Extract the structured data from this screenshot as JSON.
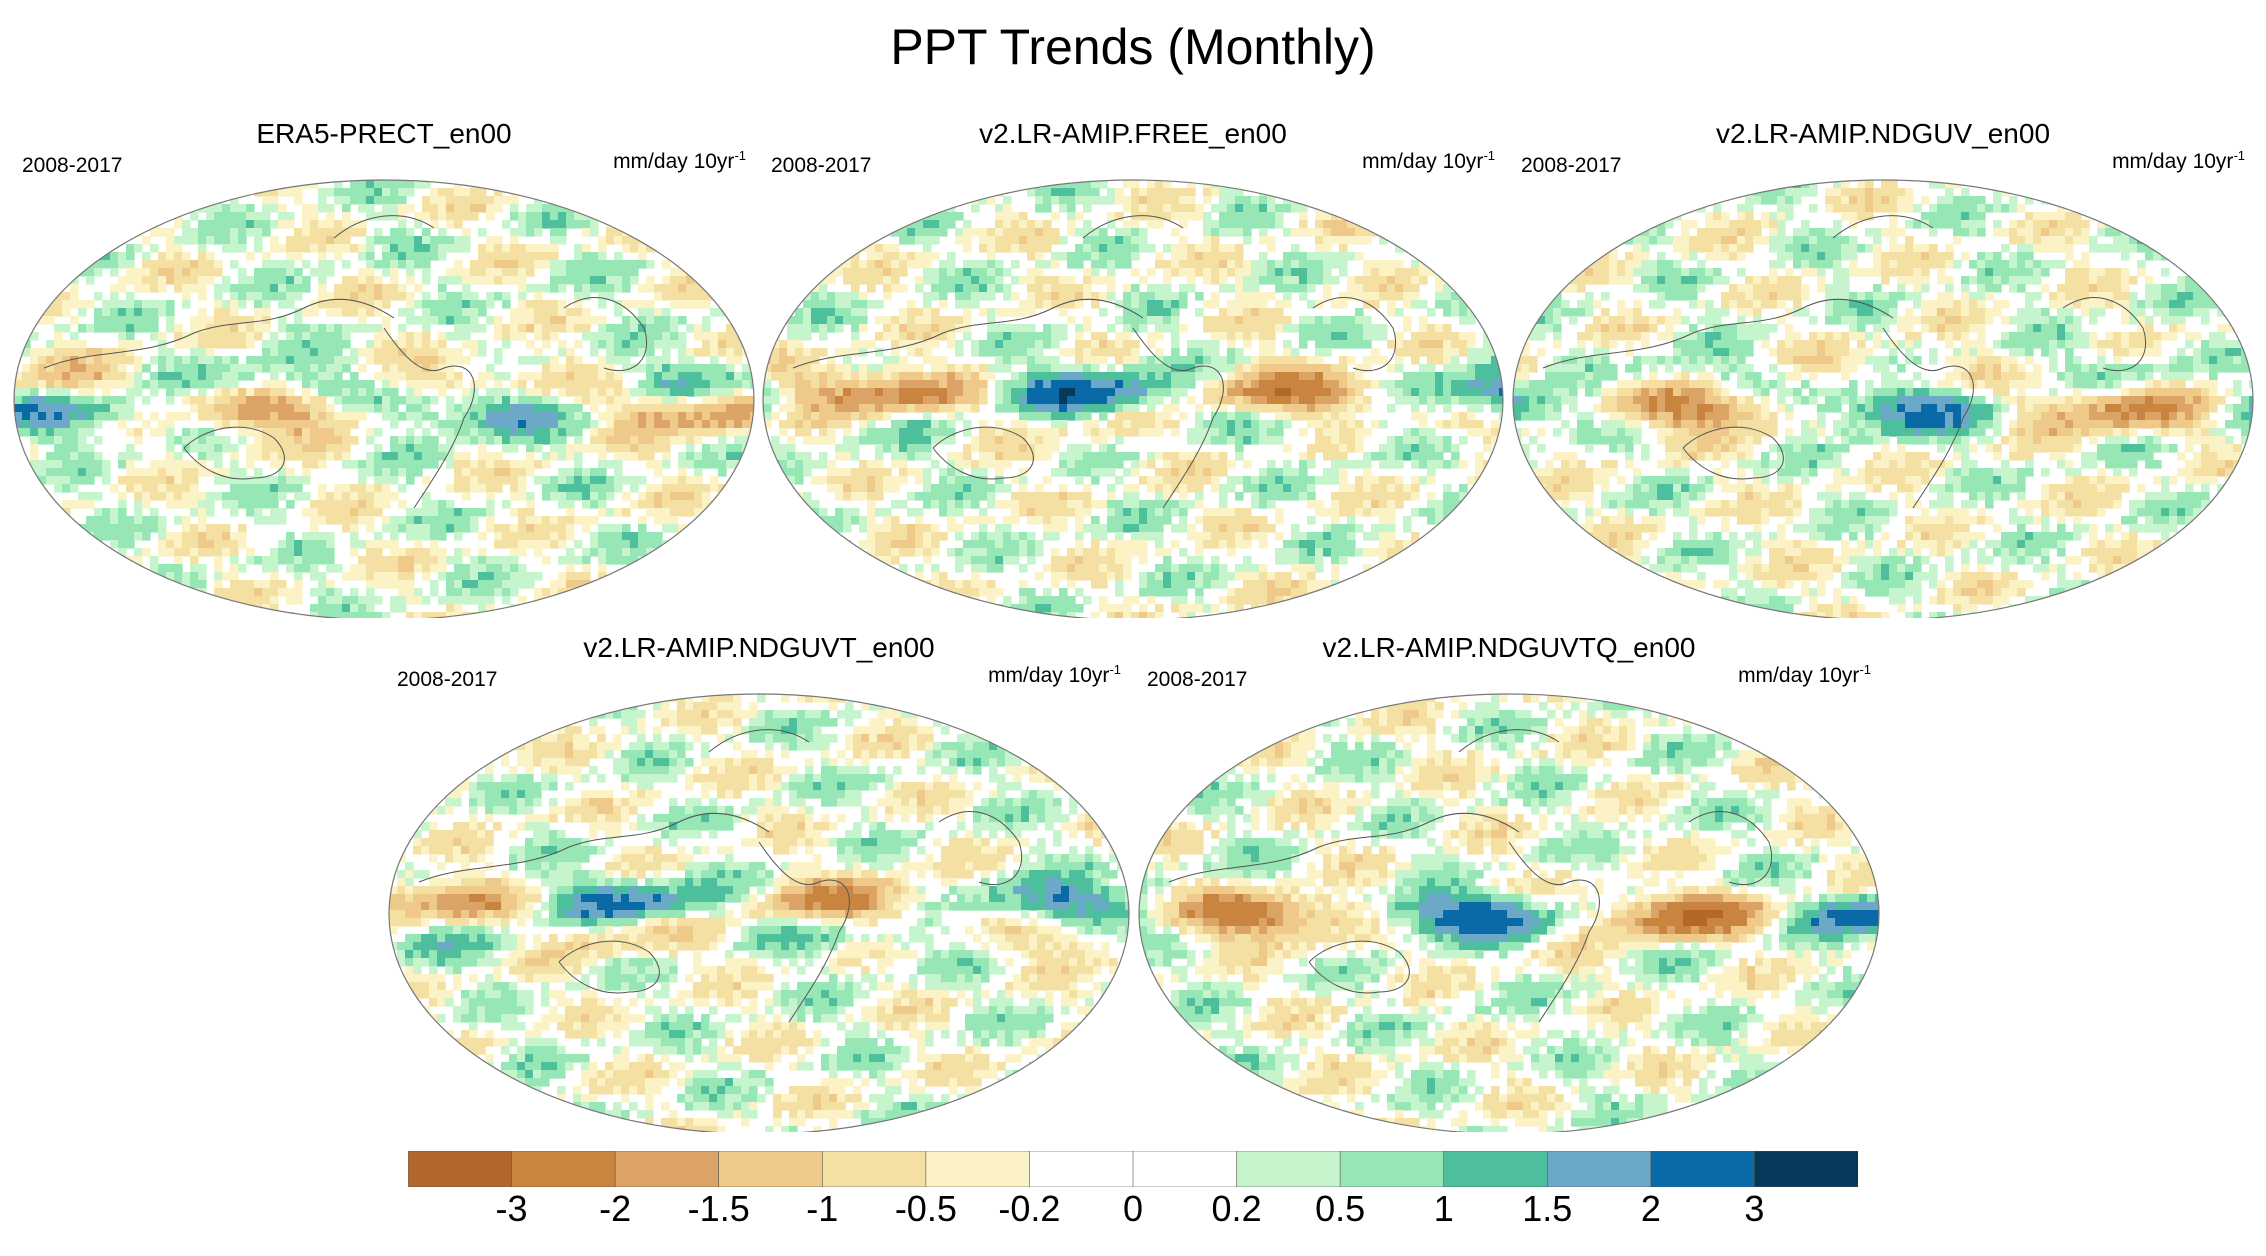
{
  "title": "PPT Trends (Monthly)",
  "chart_data": {
    "type": "heatmap",
    "title": "PPT Trends (Monthly)",
    "panels": [
      {
        "name": "ERA5-PRECT_en00",
        "period": "2008-2017",
        "units": "mm/day 10yr",
        "units_exp": "-1"
      },
      {
        "name": "v2.LR-AMIP.FREE_en00",
        "period": "2008-2017",
        "units": "mm/day 10yr",
        "units_exp": "-1"
      },
      {
        "name": "v2.LR-AMIP.NDGUV_en00",
        "period": "2008-2017",
        "units": "mm/day 10yr",
        "units_exp": "-1"
      },
      {
        "name": "v2.LR-AMIP.NDGUVT_en00",
        "period": "2008-2017",
        "units": "mm/day 10yr",
        "units_exp": "-1"
      },
      {
        "name": "v2.LR-AMIP.NDGUVTQ_en00",
        "period": "2008-2017",
        "units": "mm/day 10yr",
        "units_exp": "-1"
      }
    ],
    "colorbar": {
      "levels": [
        "-3",
        "-2",
        "-1.5",
        "-1",
        "-0.5",
        "-0.2",
        "0",
        "0.2",
        "0.5",
        "1",
        "1.5",
        "2",
        "3"
      ],
      "colors": [
        "#b3672b",
        "#c98540",
        "#dba466",
        "#efc98a",
        "#f4e0a3",
        "#fbf2c6",
        "#ffffff",
        "#ffffff",
        "#c6f5cd",
        "#96e6b6",
        "#4dbf9c",
        "#6ca9c8",
        "#0a6aa8",
        "#073a5a"
      ]
    }
  }
}
